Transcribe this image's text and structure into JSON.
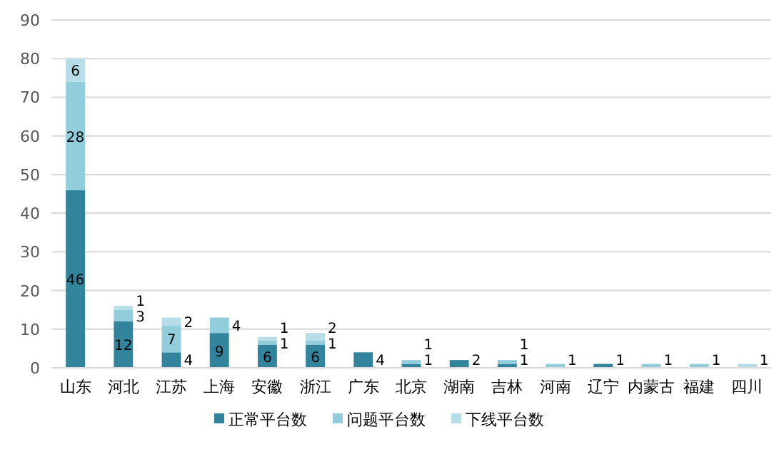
{
  "chart_data": {
    "type": "bar",
    "stacked": true,
    "categories": [
      "山东",
      "河北",
      "江苏",
      "上海",
      "安徽",
      "浙江",
      "广东",
      "北京",
      "湖南",
      "吉林",
      "河南",
      "辽宁",
      "内蒙古",
      "福建",
      "四川"
    ],
    "series": [
      {
        "name": "正常平台数",
        "color": "#31849b",
        "values": [
          46,
          12,
          4,
          9,
          6,
          6,
          4,
          1,
          2,
          1,
          null,
          1,
          null,
          null,
          null
        ]
      },
      {
        "name": "问题平台数",
        "color": "#92cddc",
        "values": [
          28,
          3,
          7,
          4,
          1,
          1,
          null,
          1,
          null,
          1,
          1,
          null,
          1,
          1,
          null
        ]
      },
      {
        "name": "下线平台数",
        "color": "#b7dee8",
        "values": [
          6,
          1,
          2,
          null,
          1,
          2,
          null,
          null,
          null,
          null,
          null,
          null,
          null,
          null,
          1
        ]
      }
    ],
    "ylim": [
      0,
      90
    ],
    "yticks": [
      0,
      10,
      20,
      30,
      40,
      50,
      60,
      70,
      80,
      90
    ],
    "grid": "y",
    "legend": "bottom",
    "data_labels": true
  }
}
